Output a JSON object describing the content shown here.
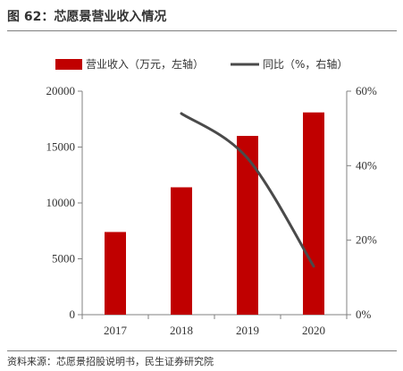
{
  "figure": {
    "title": "图 62：芯愿景营业收入情况",
    "source": "资料来源：芯愿景招股说明书，民生证券研究院"
  },
  "colors": {
    "bar": "#c00000",
    "line": "#4a4a4a",
    "axis": "#808080"
  },
  "chart_data": {
    "type": "bar",
    "categories": [
      "2017",
      "2018",
      "2019",
      "2020"
    ],
    "series": [
      {
        "name": "营业收入（万元，左轴）",
        "type": "bar",
        "axis": "left",
        "values": [
          7400,
          11400,
          16000,
          18100
        ]
      },
      {
        "name": "同比（%，右轴）",
        "type": "line",
        "axis": "right",
        "values": [
          null,
          54,
          42,
          13
        ]
      }
    ],
    "y_left": {
      "ylim": [
        0,
        20000
      ],
      "ticks": [
        "0",
        "5000",
        "10000",
        "15000",
        "20000"
      ]
    },
    "y_right": {
      "ylim": [
        0,
        60
      ],
      "ticks": [
        "0%",
        "20%",
        "40%",
        "60%"
      ]
    },
    "legend_position": "top",
    "grid": false
  }
}
